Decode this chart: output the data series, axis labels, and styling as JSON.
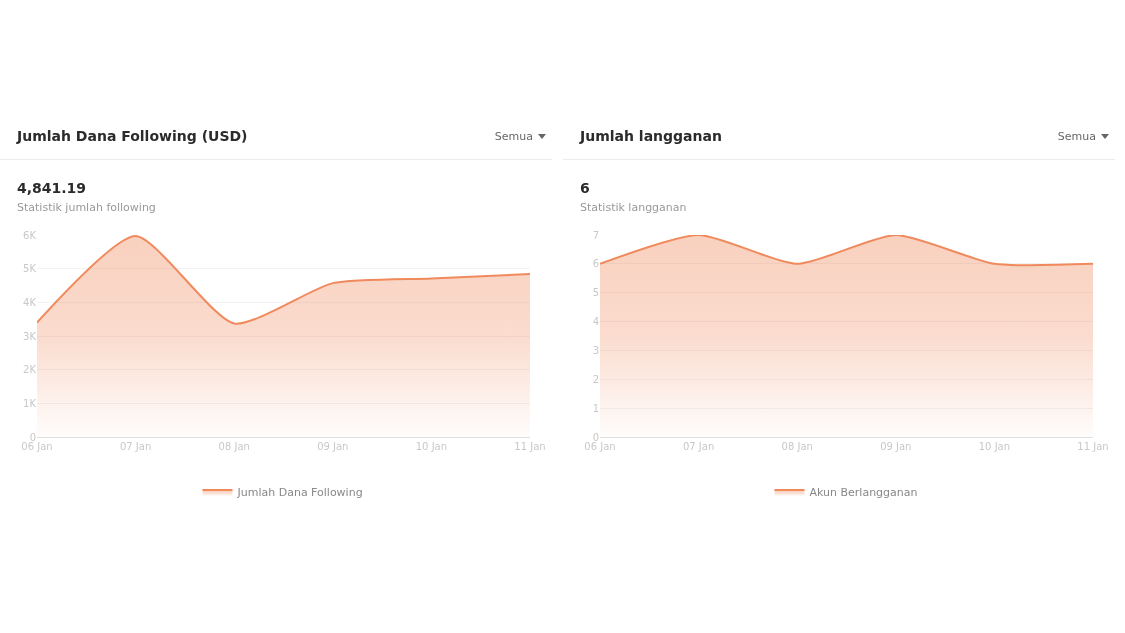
{
  "chart_data": [
    {
      "type": "area",
      "title": "Jumlah Dana Following (USD)",
      "subtitle": "4,841.19",
      "annotations": [
        "Statistik jumlah following",
        "Semua"
      ],
      "x": [
        "--01-06",
        "--01-07",
        "--01-08",
        "--01-09",
        "--01-10",
        "--01-11"
      ],
      "series": [
        {
          "name": "Jumlah Dana Following",
          "color": "#f08a5d",
          "values": [
            3400,
            5970,
            3370,
            4570,
            4710,
            4840
          ]
        }
      ],
      "xlim": [
        "--01-06",
        "--01-11"
      ],
      "xticks": [
        {
          "value": "--01-06",
          "label": "06 Jan"
        },
        {
          "value": "--01-07",
          "label": "07 Jan"
        },
        {
          "value": "--01-08",
          "label": "08 Jan"
        },
        {
          "value": "--01-09",
          "label": "09 Jan"
        },
        {
          "value": "--01-10",
          "label": "10 Jan"
        },
        {
          "value": "--01-11",
          "label": "11 Jan"
        }
      ],
      "ylim": [
        0,
        6000
      ],
      "yticks": [
        0,
        {
          "value": 1000,
          "label": "1K"
        },
        {
          "value": 2000,
          "label": "2K"
        },
        {
          "value": 3000,
          "label": "3K"
        },
        {
          "value": 4000,
          "label": "4K"
        },
        {
          "value": 5000,
          "label": "5K"
        },
        {
          "value": 6000,
          "label": "6K"
        }
      ],
      "grid": "y",
      "legend": "bottom",
      "marker": "none"
    },
    {
      "type": "area",
      "title": "Jumlah langganan",
      "subtitle": "6",
      "annotations": [
        "Statistik langganan",
        "Semua"
      ],
      "x": [
        "--01-06",
        "--01-07",
        "--01-08",
        "--01-09",
        "--01-10",
        "--01-11"
      ],
      "series": [
        {
          "name": "Akun Berlangganan",
          "color": "#f08a5d",
          "values": [
            6,
            7,
            6,
            7,
            6,
            6
          ]
        }
      ],
      "xlim": [
        "--01-06",
        "--01-11"
      ],
      "xticks": [
        {
          "value": "--01-06",
          "label": "06 Jan"
        },
        {
          "value": "--01-07",
          "label": "07 Jan"
        },
        {
          "value": "--01-08",
          "label": "08 Jan"
        },
        {
          "value": "--01-09",
          "label": "09 Jan"
        },
        {
          "value": "--01-10",
          "label": "10 Jan"
        },
        {
          "value": "--01-11",
          "label": "11 Jan"
        }
      ],
      "ylim": [
        0,
        7
      ],
      "yticks": [
        0,
        1,
        2,
        3,
        4,
        5,
        6,
        7
      ],
      "grid": "y",
      "legend": "bottom",
      "marker": "none"
    }
  ]
}
